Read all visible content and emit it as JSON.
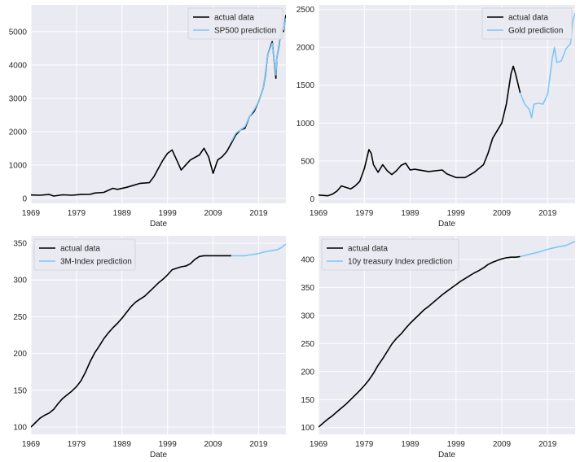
{
  "chart_data": [
    {
      "type": "line",
      "xlabel": "Date",
      "ylabel": "",
      "xlim": [
        1969,
        2025
      ],
      "ylim": [
        -150,
        5800
      ],
      "x_ticks": [
        1969,
        1979,
        1989,
        1999,
        2009,
        2019
      ],
      "x_tick_labels": [
        "1969",
        "1979",
        "1989",
        "1999",
        "2009",
        "2019"
      ],
      "y_ticks": [
        0,
        1000,
        2000,
        3000,
        4000,
        5000
      ],
      "y_tick_labels": [
        "0",
        "1000",
        "2000",
        "3000",
        "4000",
        "5000"
      ],
      "grid": true,
      "legend_position": "top-right",
      "series": [
        {
          "name": "actual data",
          "color": "#000000",
          "x": [
            1969,
            1971,
            1973,
            1974,
            1976,
            1978,
            1980,
            1982,
            1983,
            1985,
            1987,
            1988,
            1990,
            1991,
            1993,
            1995,
            1996,
            1997,
            1998,
            1999,
            2000,
            2001,
            2002,
            2003,
            2004,
            2006,
            2007,
            2008,
            2009,
            2010,
            2011,
            2012,
            2013,
            2014,
            2015,
            2016,
            2017,
            2018,
            2019,
            2020,
            2020.5,
            2021,
            2022,
            2022.8,
            2023,
            2023.5,
            2024,
            2024.5,
            2025
          ],
          "y": [
            100,
            95,
            115,
            70,
            105,
            95,
            115,
            120,
            160,
            180,
            300,
            270,
            330,
            370,
            450,
            470,
            650,
            900,
            1150,
            1350,
            1450,
            1150,
            850,
            1000,
            1150,
            1300,
            1500,
            1250,
            750,
            1150,
            1250,
            1400,
            1650,
            1900,
            2050,
            2100,
            2450,
            2600,
            2900,
            3300,
            3700,
            4300,
            4700,
            3600,
            4200,
            4600,
            5100,
            5000,
            5500
          ]
        },
        {
          "name": "SP500 prediction",
          "color": "#7ec8f5",
          "x": [
            2013,
            2014,
            2015,
            2016,
            2017,
            2018,
            2019,
            2020,
            2020.5,
            2021,
            2022,
            2022.8,
            2023,
            2023.5,
            2024,
            2024.5,
            2025
          ],
          "y": [
            1700,
            1950,
            2050,
            2150,
            2450,
            2650,
            2900,
            3300,
            3750,
            4300,
            4650,
            3700,
            4200,
            4650,
            5150,
            5050,
            5400
          ]
        }
      ]
    },
    {
      "type": "line",
      "xlabel": "Date",
      "ylabel": "",
      "xlim": [
        1969,
        2025
      ],
      "ylim": [
        -60,
        2560
      ],
      "x_ticks": [
        1969,
        1979,
        1989,
        1999,
        2009,
        2019
      ],
      "x_tick_labels": [
        "1969",
        "1979",
        "1989",
        "1999",
        "2009",
        "2019"
      ],
      "y_ticks": [
        0,
        500,
        1000,
        1500,
        2000,
        2500
      ],
      "y_tick_labels": [
        "0",
        "500",
        "1000",
        "1500",
        "2000",
        "2500"
      ],
      "grid": true,
      "legend_position": "top-right",
      "series": [
        {
          "name": "actual data",
          "color": "#000000",
          "x": [
            1969,
            1971,
            1972,
            1973,
            1974,
            1975,
            1976,
            1977,
            1978,
            1979,
            1980,
            1980.5,
            1981,
            1982,
            1983,
            1984,
            1985,
            1986,
            1987,
            1988,
            1989,
            1990,
            1993,
            1996,
            1997,
            1999,
            2001,
            2003,
            2005,
            2006,
            2007,
            2008,
            2009,
            2010,
            2011,
            2011.5,
            2012,
            2013
          ],
          "y": [
            50,
            40,
            60,
            100,
            170,
            150,
            130,
            170,
            230,
            400,
            650,
            600,
            450,
            350,
            450,
            370,
            320,
            370,
            440,
            470,
            380,
            390,
            360,
            380,
            330,
            280,
            280,
            350,
            450,
            600,
            800,
            900,
            1000,
            1250,
            1650,
            1750,
            1650,
            1400
          ]
        },
        {
          "name": "Gold prediction",
          "color": "#7ec8f5",
          "x": [
            2013,
            2014,
            2015,
            2015.5,
            2016,
            2017,
            2018,
            2019,
            2020,
            2020.5,
            2021,
            2022,
            2023,
            2024,
            2024.5,
            2025
          ],
          "y": [
            1400,
            1250,
            1180,
            1070,
            1250,
            1260,
            1250,
            1380,
            1850,
            2000,
            1800,
            1820,
            1980,
            2050,
            2350,
            2450
          ]
        }
      ]
    },
    {
      "type": "line",
      "xlabel": "Date",
      "ylabel": "",
      "xlim": [
        1969,
        2025
      ],
      "ylim": [
        90,
        360
      ],
      "x_ticks": [
        1969,
        1979,
        1989,
        1999,
        2009,
        2019
      ],
      "x_tick_labels": [
        "1969",
        "1979",
        "1989",
        "1999",
        "2009",
        "2019"
      ],
      "y_ticks": [
        100,
        150,
        200,
        250,
        300,
        350
      ],
      "y_tick_labels": [
        "100",
        "150",
        "200",
        "250",
        "300",
        "350"
      ],
      "grid": true,
      "legend_position": "top-left",
      "series": [
        {
          "name": "actual data",
          "color": "#000000",
          "x": [
            1969,
            1970,
            1971,
            1972,
            1973,
            1974,
            1975,
            1976,
            1977,
            1978,
            1979,
            1980,
            1981,
            1982,
            1983,
            1984,
            1985,
            1986,
            1987,
            1988,
            1989,
            1990,
            1991,
            1992,
            1993,
            1994,
            1995,
            1996,
            1997,
            1998,
            1999,
            2000,
            2001,
            2002,
            2003,
            2004,
            2005,
            2006,
            2007,
            2008,
            2009,
            2010,
            2011,
            2012,
            2013
          ],
          "y": [
            100,
            106,
            112,
            116,
            119,
            124,
            132,
            139,
            144,
            149,
            155,
            163,
            175,
            189,
            201,
            210,
            220,
            228,
            235,
            241,
            248,
            256,
            264,
            270,
            274,
            278,
            284,
            290,
            296,
            301,
            307,
            314,
            316,
            318,
            319,
            322,
            328,
            332,
            333,
            333,
            333,
            333,
            333,
            333,
            333
          ]
        },
        {
          "name": "3M-Index prediction",
          "color": "#7ec8f5",
          "x": [
            2013,
            2014,
            2015,
            2016,
            2017,
            2018,
            2019,
            2020,
            2021,
            2022,
            2023,
            2024,
            2025
          ],
          "y": [
            333,
            333,
            333,
            333,
            334,
            335,
            336,
            338,
            339,
            340,
            341,
            344,
            349
          ]
        }
      ]
    },
    {
      "type": "line",
      "xlabel": "Date",
      "ylabel": "",
      "xlim": [
        1969,
        2025
      ],
      "ylim": [
        88,
        442
      ],
      "x_ticks": [
        1969,
        1979,
        1989,
        1999,
        2009,
        2019
      ],
      "x_tick_labels": [
        "1969",
        "1979",
        "1989",
        "1999",
        "2009",
        "2019"
      ],
      "y_ticks": [
        100,
        150,
        200,
        250,
        300,
        350,
        400
      ],
      "y_tick_labels": [
        "100",
        "150",
        "200",
        "250",
        "300",
        "350",
        "400"
      ],
      "grid": true,
      "legend_position": "top-left",
      "series": [
        {
          "name": "actual data",
          "color": "#000000",
          "x": [
            1969,
            1970,
            1971,
            1972,
            1973,
            1974,
            1975,
            1976,
            1977,
            1978,
            1979,
            1980,
            1981,
            1982,
            1983,
            1984,
            1985,
            1986,
            1987,
            1988,
            1989,
            1990,
            1991,
            1992,
            1993,
            1994,
            1995,
            1996,
            1997,
            1998,
            1999,
            2000,
            2001,
            2002,
            2003,
            2004,
            2005,
            2006,
            2007,
            2008,
            2009,
            2010,
            2011,
            2012,
            2013
          ],
          "y": [
            101,
            108,
            115,
            121,
            128,
            135,
            142,
            150,
            158,
            166,
            175,
            185,
            197,
            211,
            223,
            236,
            249,
            259,
            267,
            277,
            286,
            294,
            302,
            310,
            316,
            323,
            330,
            337,
            343,
            349,
            355,
            361,
            366,
            371,
            376,
            380,
            385,
            391,
            395,
            398,
            401,
            403,
            404,
            404,
            405
          ]
        },
        {
          "name": "10y treasury Index prediction",
          "color": "#7ec8f5",
          "x": [
            2013,
            2015,
            2017,
            2019,
            2021,
            2023,
            2025
          ],
          "y": [
            405,
            409,
            413,
            418,
            422,
            425,
            432
          ]
        }
      ]
    }
  ]
}
